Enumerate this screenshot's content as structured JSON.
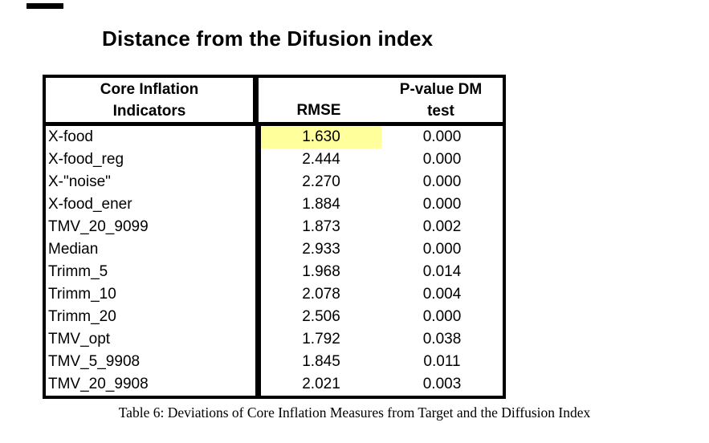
{
  "title": "Distance from the Difusion index",
  "table": {
    "header": {
      "col1_line1": "Core Inflation",
      "col1_line2": "Indicators",
      "col2": "RMSE",
      "col3_line1": "P-value DM",
      "col3_line2": "test"
    },
    "highlight_color": "#ffff9c",
    "rows": [
      {
        "indicator": "X-food",
        "rmse": "1.630",
        "pvalue": "0.000"
      },
      {
        "indicator": "X-food_reg",
        "rmse": "2.444",
        "pvalue": "0.000"
      },
      {
        "indicator": "X-\"noise\"",
        "rmse": "2.270",
        "pvalue": "0.000"
      },
      {
        "indicator": "X-food_ener",
        "rmse": "1.884",
        "pvalue": "0.000"
      },
      {
        "indicator": "TMV_20_9099",
        "rmse": "1.873",
        "pvalue": "0.002"
      },
      {
        "indicator": "Median",
        "rmse": "2.933",
        "pvalue": "0.000"
      },
      {
        "indicator": "Trimm_5",
        "rmse": "1.968",
        "pvalue": "0.014"
      },
      {
        "indicator": "Trimm_10",
        "rmse": "2.078",
        "pvalue": "0.004"
      },
      {
        "indicator": "Trimm_20",
        "rmse": "2.506",
        "pvalue": "0.000"
      },
      {
        "indicator": "TMV_opt",
        "rmse": "1.792",
        "pvalue": "0.038"
      },
      {
        "indicator": "TMV_5_9908",
        "rmse": "1.845",
        "pvalue": "0.011"
      },
      {
        "indicator": "TMV_20_9908",
        "rmse": "2.021",
        "pvalue": "0.003"
      }
    ]
  },
  "caption": "Table 6: Deviations of Core Inflation Measures from Target and the Diffusion Index",
  "chart_data": {
    "type": "table",
    "title": "Distance from the Difusion index",
    "columns": [
      "Core Inflation Indicators",
      "RMSE",
      "P-value DM test"
    ],
    "categories": [
      "X-food",
      "X-food_reg",
      "X-\"noise\"",
      "X-food_ener",
      "TMV_20_9099",
      "Median",
      "Trimm_5",
      "Trimm_10",
      "Trimm_20",
      "TMV_opt",
      "TMV_5_9908",
      "TMV_20_9908"
    ],
    "series": [
      {
        "name": "RMSE",
        "values": [
          1.63,
          2.444,
          2.27,
          1.884,
          1.873,
          2.933,
          1.968,
          2.078,
          2.506,
          1.792,
          1.845,
          2.021
        ]
      },
      {
        "name": "P-value DM test",
        "values": [
          0.0,
          0.0,
          0.0,
          0.0,
          0.002,
          0.0,
          0.014,
          0.004,
          0.0,
          0.038,
          0.011,
          0.003
        ]
      }
    ],
    "highlighted_cell": {
      "row": "X-food",
      "column": "RMSE",
      "value": 1.63
    }
  }
}
